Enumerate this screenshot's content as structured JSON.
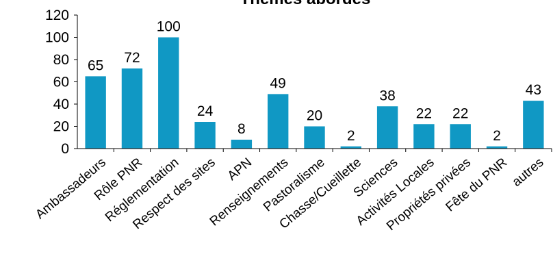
{
  "chart_data": {
    "type": "bar",
    "title": "Thèmes abordés",
    "categories": [
      "Ambassadeurs",
      "Rôle PNR",
      "Réglementation",
      "Respect des sites",
      "APN",
      "Renseignements",
      "Pastoralisme",
      "Chasse/Cueillette",
      "Sciences",
      "Activités Locales",
      "Propriétés privées",
      "Fête du PNR",
      "autres"
    ],
    "values": [
      65,
      72,
      100,
      24,
      8,
      49,
      20,
      2,
      38,
      22,
      22,
      2,
      43
    ],
    "ylim": [
      0,
      120
    ],
    "yticks": [
      0,
      20,
      40,
      60,
      80,
      100,
      120
    ],
    "bar_color": "#1098c4",
    "grid": false,
    "legend": "none"
  }
}
